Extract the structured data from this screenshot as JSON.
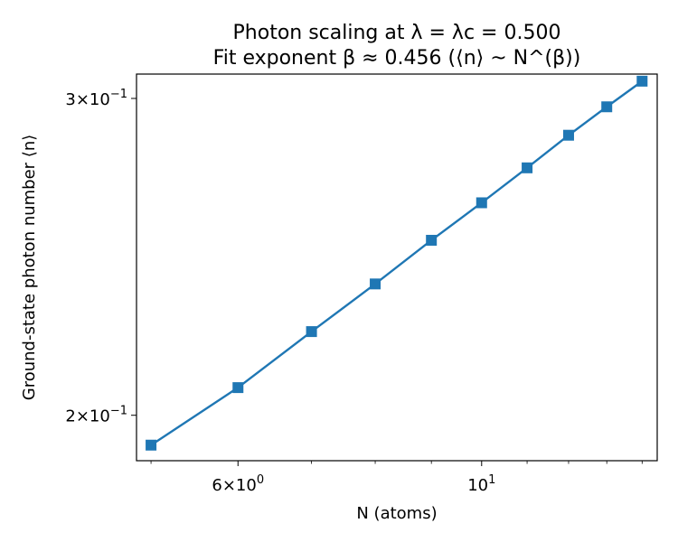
{
  "chart_data": {
    "type": "line",
    "title": "Photon scaling at λ = λc = 0.500",
    "subtitle": "Fit exponent β ≈ 0.456 (⟨n⟩ ~ N^(β))",
    "xlabel": "N (atoms)",
    "ylabel": "Ground-state photon number ⟨n⟩",
    "x_scale": "log",
    "y_scale": "log",
    "xlim": [
      4.85,
      14.45
    ],
    "ylim": [
      0.1887,
      0.3095
    ],
    "x_ticks": [
      {
        "value": 6,
        "mantissa": "6",
        "base": "10",
        "exp": "0"
      },
      {
        "value": 10,
        "mantissa": "",
        "base": "10",
        "exp": "1"
      }
    ],
    "x_minor_ticks": [
      5,
      7,
      8,
      9,
      11,
      12,
      13,
      14
    ],
    "y_ticks": [
      {
        "value": 0.2,
        "mantissa": "2",
        "base": "10",
        "exp": "−1"
      },
      {
        "value": 0.3,
        "mantissa": "3",
        "base": "10",
        "exp": "−1"
      }
    ],
    "grid": false,
    "series": [
      {
        "color": "#1f77b4",
        "marker": "square",
        "x": [
          5,
          6,
          7,
          8,
          9,
          10,
          11,
          12,
          13,
          14
        ],
        "y": [
          0.1925,
          0.2072,
          0.2226,
          0.2366,
          0.2502,
          0.2625,
          0.2745,
          0.2862,
          0.2968,
          0.3067
        ]
      }
    ]
  }
}
